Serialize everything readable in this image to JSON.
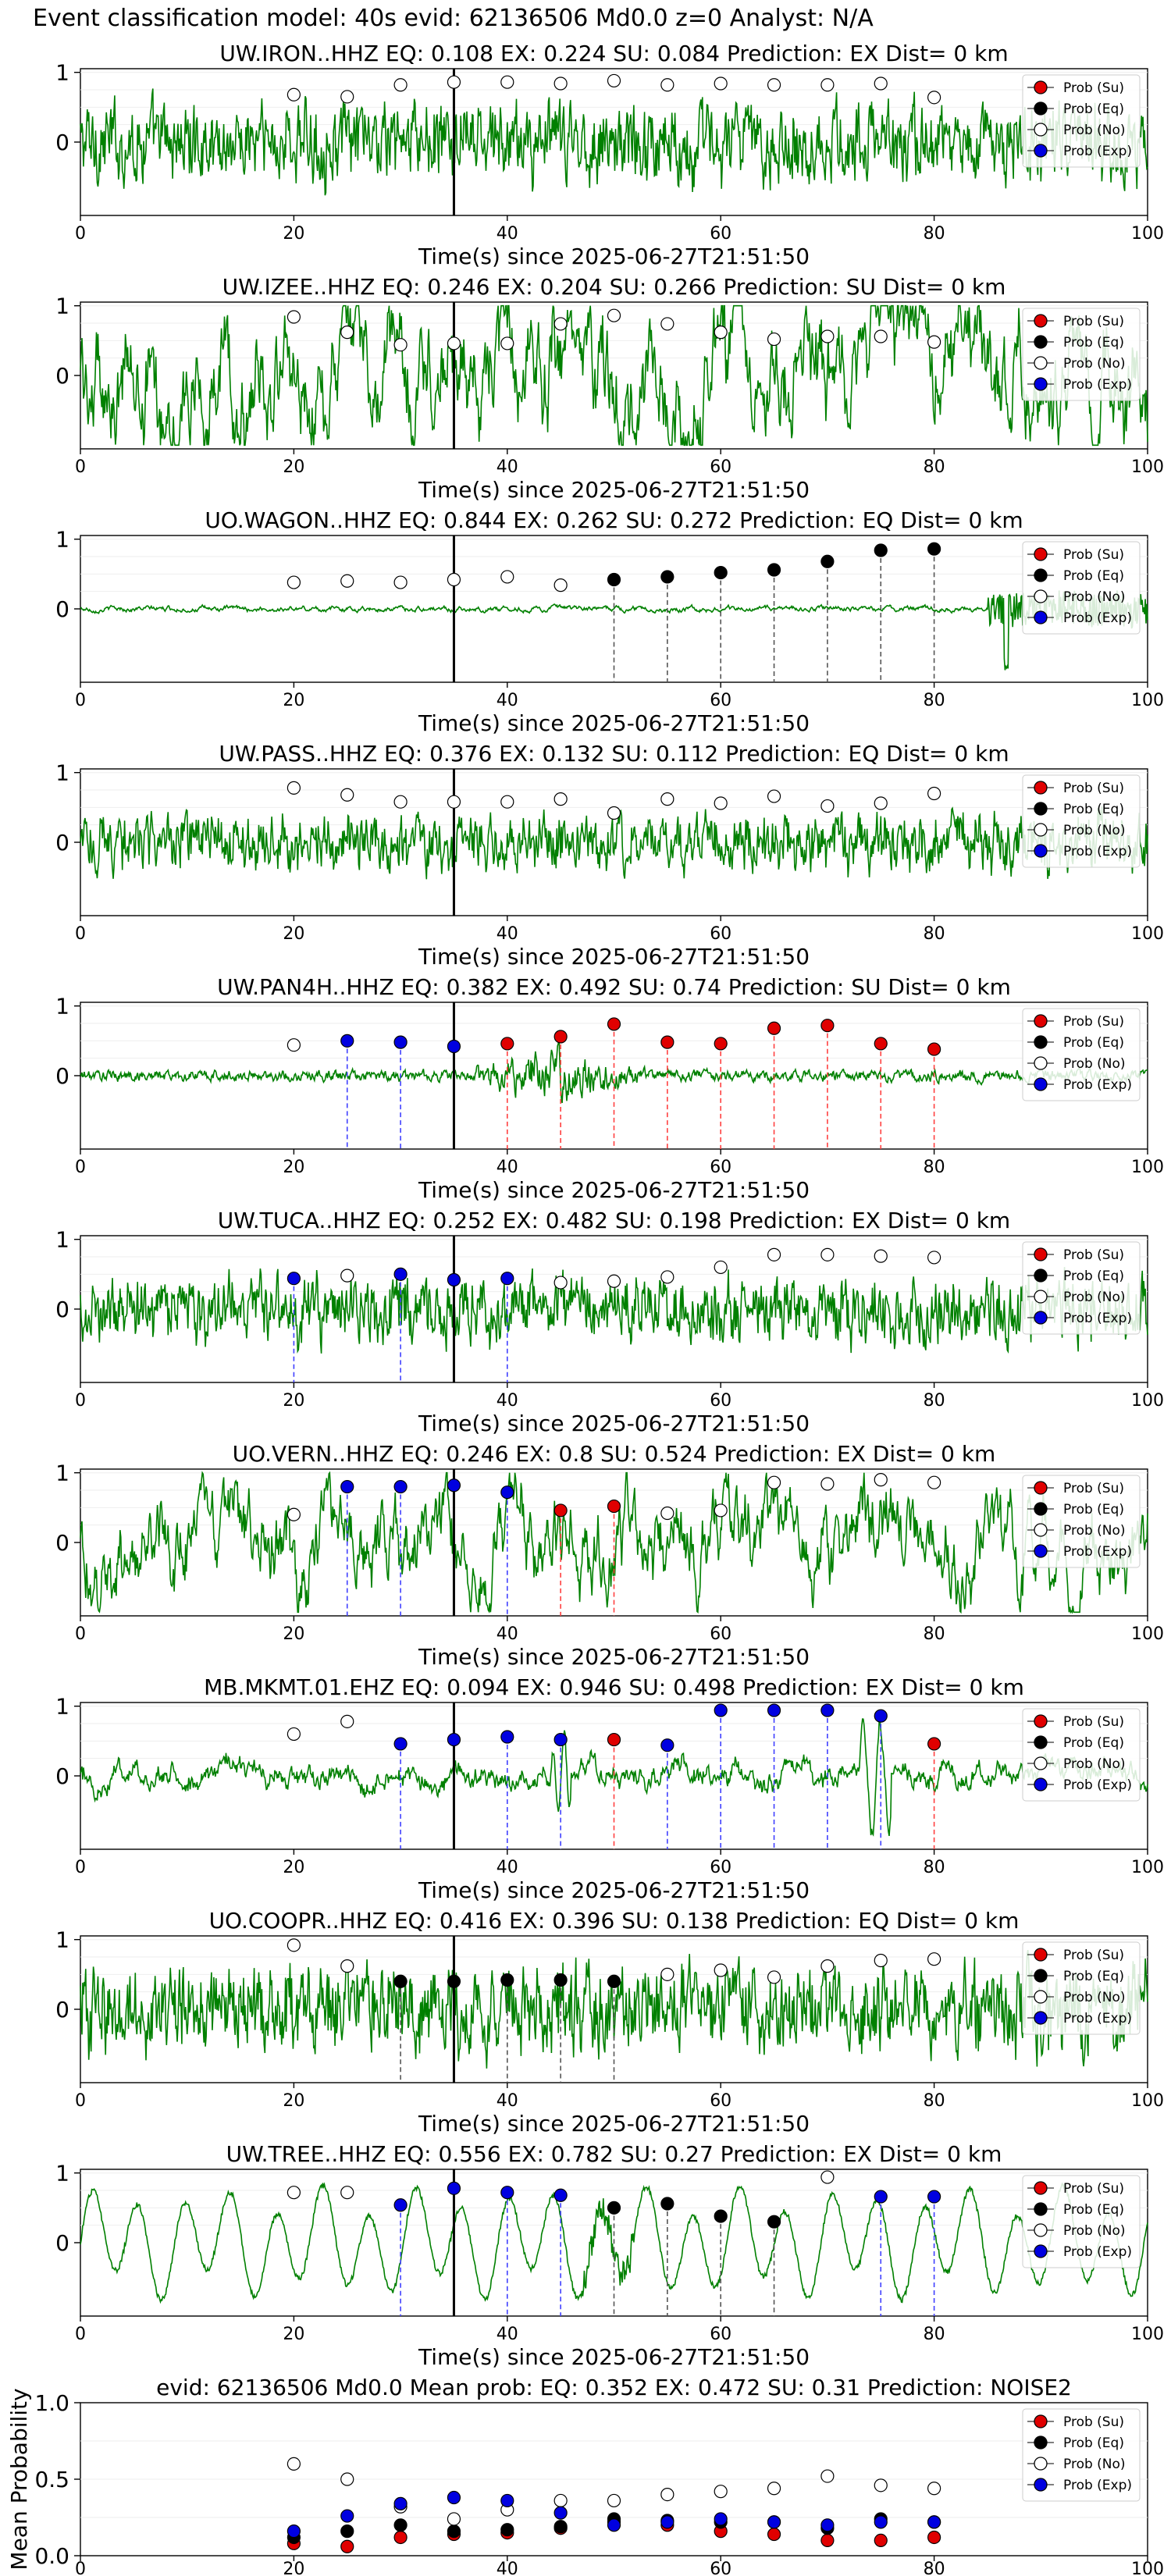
{
  "figure": {
    "suptitle": "Event classification model: 40s evid: 62136506 Md0.0 z=0 Analyst: N/A"
  },
  "legend_labels": [
    "Prob (Su)",
    "Prob (Eq)",
    "Prob (No)",
    "Prob (Exp)"
  ],
  "colors": {
    "su": "#e00000",
    "eq": "#000000",
    "no": "#ffffff",
    "exp": "#0000e0",
    "trace": "#008000",
    "su_line": "#ff4040",
    "exp_line": "#4040ff",
    "eq_line": "#555555"
  },
  "chart_data": [
    {
      "type": "line+scatter",
      "station": "UW.IRON..HHZ",
      "title": "UW.IRON..HHZ   EQ: 0.108  EX: 0.224  SU: 0.084   Prediction: EX    Dist= 0 km",
      "xlabel": "Time(s) since 2025-06-27T21:51:50",
      "xlim": [
        0,
        100
      ],
      "xticks": [
        0,
        20,
        40,
        60,
        80,
        100
      ],
      "yticks": [
        0,
        1
      ],
      "pick_time": 35,
      "trace_style": "noisy",
      "trace_amp": 0.55,
      "points": [
        {
          "t": 20,
          "cls": "no",
          "p": 0.68
        },
        {
          "t": 25,
          "cls": "no",
          "p": 0.65
        },
        {
          "t": 30,
          "cls": "no",
          "p": 0.82
        },
        {
          "t": 35,
          "cls": "no",
          "p": 0.86
        },
        {
          "t": 40,
          "cls": "no",
          "p": 0.86
        },
        {
          "t": 45,
          "cls": "no",
          "p": 0.84
        },
        {
          "t": 50,
          "cls": "no",
          "p": 0.88
        },
        {
          "t": 55,
          "cls": "no",
          "p": 0.82
        },
        {
          "t": 60,
          "cls": "no",
          "p": 0.84
        },
        {
          "t": 65,
          "cls": "no",
          "p": 0.82
        },
        {
          "t": 70,
          "cls": "no",
          "p": 0.82
        },
        {
          "t": 75,
          "cls": "no",
          "p": 0.84
        },
        {
          "t": 80,
          "cls": "no",
          "p": 0.64
        }
      ]
    },
    {
      "type": "line+scatter",
      "station": "UW.IZEE..HHZ",
      "title": "UW.IZEE..HHZ  EQ: 0.246  EX: 0.204  SU: 0.266   Prediction: SU    Dist= 0 km",
      "xlabel": "Time(s) since 2025-06-27T21:51:50",
      "xlim": [
        0,
        100
      ],
      "xticks": [
        0,
        20,
        40,
        60,
        80,
        100
      ],
      "yticks": [
        0,
        1
      ],
      "pick_time": 35,
      "trace_style": "lowfreq",
      "trace_amp": 0.8,
      "points": [
        {
          "t": 20,
          "cls": "no",
          "p": 0.84
        },
        {
          "t": 25,
          "cls": "no",
          "p": 0.62
        },
        {
          "t": 30,
          "cls": "no",
          "p": 0.44
        },
        {
          "t": 35,
          "cls": "no",
          "p": 0.46
        },
        {
          "t": 40,
          "cls": "no",
          "p": 0.46
        },
        {
          "t": 45,
          "cls": "no",
          "p": 0.74
        },
        {
          "t": 50,
          "cls": "no",
          "p": 0.86
        },
        {
          "t": 55,
          "cls": "no",
          "p": 0.74
        },
        {
          "t": 60,
          "cls": "no",
          "p": 0.62
        },
        {
          "t": 65,
          "cls": "no",
          "p": 0.52
        },
        {
          "t": 70,
          "cls": "no",
          "p": 0.56
        },
        {
          "t": 75,
          "cls": "no",
          "p": 0.56
        },
        {
          "t": 80,
          "cls": "no",
          "p": 0.48
        }
      ]
    },
    {
      "type": "line+scatter",
      "station": "UO.WAGON..HHZ",
      "title": "UO.WAGON..HHZ   EQ: 0.844  EX: 0.262  SU: 0.272   Prediction: EQ    Dist= 0 km",
      "xlabel": "Time(s) since 2025-06-27T21:51:50",
      "xlim": [
        0,
        100
      ],
      "xticks": [
        0,
        20,
        40,
        60,
        80,
        100
      ],
      "yticks": [
        0,
        1
      ],
      "pick_time": 35,
      "trace_style": "quiet",
      "trace_amp": 0.06,
      "points": [
        {
          "t": 20,
          "cls": "no",
          "p": 0.38
        },
        {
          "t": 25,
          "cls": "no",
          "p": 0.4
        },
        {
          "t": 30,
          "cls": "no",
          "p": 0.38
        },
        {
          "t": 35,
          "cls": "no",
          "p": 0.42
        },
        {
          "t": 40,
          "cls": "no",
          "p": 0.46
        },
        {
          "t": 45,
          "cls": "no",
          "p": 0.34
        },
        {
          "t": 50,
          "cls": "eq",
          "p": 0.42
        },
        {
          "t": 55,
          "cls": "eq",
          "p": 0.46
        },
        {
          "t": 60,
          "cls": "eq",
          "p": 0.52
        },
        {
          "t": 65,
          "cls": "eq",
          "p": 0.56
        },
        {
          "t": 70,
          "cls": "eq",
          "p": 0.68
        },
        {
          "t": 75,
          "cls": "eq",
          "p": 0.84
        },
        {
          "t": 80,
          "cls": "eq",
          "p": 0.86
        }
      ]
    },
    {
      "type": "line+scatter",
      "station": "UW.PASS..HHZ",
      "title": "UW.PASS..HHZ   EQ: 0.376  EX: 0.132  SU: 0.112   Prediction: EQ    Dist= 0 km",
      "xlabel": "Time(s) since 2025-06-27T21:51:50",
      "xlim": [
        0,
        100
      ],
      "xticks": [
        0,
        20,
        40,
        60,
        80,
        100
      ],
      "yticks": [
        0,
        1
      ],
      "pick_time": 35,
      "trace_style": "noisy",
      "trace_amp": 0.4,
      "points": [
        {
          "t": 20,
          "cls": "no",
          "p": 0.78
        },
        {
          "t": 25,
          "cls": "no",
          "p": 0.68
        },
        {
          "t": 30,
          "cls": "no",
          "p": 0.58
        },
        {
          "t": 35,
          "cls": "no",
          "p": 0.58
        },
        {
          "t": 40,
          "cls": "no",
          "p": 0.58
        },
        {
          "t": 45,
          "cls": "no",
          "p": 0.62
        },
        {
          "t": 50,
          "cls": "no",
          "p": 0.42
        },
        {
          "t": 55,
          "cls": "no",
          "p": 0.62
        },
        {
          "t": 60,
          "cls": "no",
          "p": 0.56
        },
        {
          "t": 65,
          "cls": "no",
          "p": 0.66
        },
        {
          "t": 70,
          "cls": "no",
          "p": 0.52
        },
        {
          "t": 75,
          "cls": "no",
          "p": 0.56
        },
        {
          "t": 80,
          "cls": "no",
          "p": 0.7
        }
      ]
    },
    {
      "type": "line+scatter",
      "station": "UW.PAN4H..HHZ",
      "title": "UW.PAN4H..HHZ   EQ: 0.382  EX: 0.492  SU: 0.74   Prediction: SU    Dist= 0 km",
      "xlabel": "Time(s) since 2025-06-27T21:51:50",
      "xlim": [
        0,
        100
      ],
      "xticks": [
        0,
        20,
        40,
        60,
        80,
        100
      ],
      "yticks": [
        0,
        1
      ],
      "pick_time": 35,
      "trace_style": "burst",
      "trace_amp": 0.15,
      "points": [
        {
          "t": 20,
          "cls": "no",
          "p": 0.44
        },
        {
          "t": 25,
          "cls": "exp",
          "p": 0.5
        },
        {
          "t": 30,
          "cls": "exp",
          "p": 0.48
        },
        {
          "t": 35,
          "cls": "exp",
          "p": 0.42
        },
        {
          "t": 40,
          "cls": "su",
          "p": 0.46
        },
        {
          "t": 45,
          "cls": "su",
          "p": 0.56
        },
        {
          "t": 50,
          "cls": "su",
          "p": 0.74
        },
        {
          "t": 55,
          "cls": "su",
          "p": 0.48
        },
        {
          "t": 60,
          "cls": "su",
          "p": 0.46
        },
        {
          "t": 65,
          "cls": "su",
          "p": 0.68
        },
        {
          "t": 70,
          "cls": "su",
          "p": 0.72
        },
        {
          "t": 75,
          "cls": "su",
          "p": 0.46
        },
        {
          "t": 80,
          "cls": "su",
          "p": 0.38
        }
      ]
    },
    {
      "type": "line+scatter",
      "station": "UW.TUCA..HHZ",
      "title": "UW.TUCA..HHZ   EQ: 0.252  EX: 0.482  SU: 0.198   Prediction: EX    Dist= 0 km",
      "xlabel": "Time(s) since 2025-06-27T21:51:50",
      "xlim": [
        0,
        100
      ],
      "xticks": [
        0,
        20,
        40,
        60,
        80,
        100
      ],
      "yticks": [
        0,
        1
      ],
      "pick_time": 35,
      "trace_style": "noisy",
      "trace_amp": 0.45,
      "points": [
        {
          "t": 20,
          "cls": "exp",
          "p": 0.44
        },
        {
          "t": 25,
          "cls": "no",
          "p": 0.48
        },
        {
          "t": 30,
          "cls": "exp",
          "p": 0.5
        },
        {
          "t": 35,
          "cls": "exp",
          "p": 0.42
        },
        {
          "t": 40,
          "cls": "exp",
          "p": 0.44
        },
        {
          "t": 45,
          "cls": "no",
          "p": 0.38
        },
        {
          "t": 50,
          "cls": "no",
          "p": 0.4
        },
        {
          "t": 55,
          "cls": "no",
          "p": 0.46
        },
        {
          "t": 60,
          "cls": "no",
          "p": 0.6
        },
        {
          "t": 65,
          "cls": "no",
          "p": 0.78
        },
        {
          "t": 70,
          "cls": "no",
          "p": 0.78
        },
        {
          "t": 75,
          "cls": "no",
          "p": 0.76
        },
        {
          "t": 80,
          "cls": "no",
          "p": 0.74
        }
      ]
    },
    {
      "type": "line+scatter",
      "station": "UO.VERN..HHZ",
      "title": "UO.VERN..HHZ   EQ: 0.246  EX: 0.8  SU: 0.524   Prediction: EX    Dist= 0 km",
      "xlabel": "Time(s) since 2025-06-27T21:51:50",
      "xlim": [
        0,
        100
      ],
      "xticks": [
        0,
        20,
        40,
        60,
        80,
        100
      ],
      "yticks": [
        0,
        1
      ],
      "pick_time": 35,
      "trace_style": "lowfreq",
      "trace_amp": 0.6,
      "points": [
        {
          "t": 20,
          "cls": "no",
          "p": 0.4
        },
        {
          "t": 25,
          "cls": "exp",
          "p": 0.8
        },
        {
          "t": 30,
          "cls": "exp",
          "p": 0.8
        },
        {
          "t": 35,
          "cls": "exp",
          "p": 0.82
        },
        {
          "t": 40,
          "cls": "exp",
          "p": 0.72
        },
        {
          "t": 45,
          "cls": "su",
          "p": 0.46
        },
        {
          "t": 50,
          "cls": "su",
          "p": 0.52
        },
        {
          "t": 55,
          "cls": "no",
          "p": 0.42
        },
        {
          "t": 60,
          "cls": "no",
          "p": 0.46
        },
        {
          "t": 65,
          "cls": "no",
          "p": 0.86
        },
        {
          "t": 70,
          "cls": "no",
          "p": 0.84
        },
        {
          "t": 75,
          "cls": "no",
          "p": 0.9
        },
        {
          "t": 80,
          "cls": "no",
          "p": 0.86
        }
      ]
    },
    {
      "type": "line+scatter",
      "station": "MB.MKMT.01.EHZ",
      "title": "MB.MKMT.01.EHZ   EQ: 0.094  EX: 0.946  SU: 0.498   Prediction: EX    Dist= 0 km",
      "xlabel": "Time(s) since 2025-06-27T21:51:50",
      "xlim": [
        0,
        100
      ],
      "xticks": [
        0,
        20,
        40,
        60,
        80,
        100
      ],
      "yticks": [
        0,
        1
      ],
      "pick_time": 35,
      "trace_style": "spiky",
      "trace_amp": 0.3,
      "points": [
        {
          "t": 20,
          "cls": "no",
          "p": 0.6
        },
        {
          "t": 25,
          "cls": "no",
          "p": 0.78
        },
        {
          "t": 30,
          "cls": "exp",
          "p": 0.46
        },
        {
          "t": 35,
          "cls": "exp",
          "p": 0.52
        },
        {
          "t": 40,
          "cls": "exp",
          "p": 0.56
        },
        {
          "t": 45,
          "cls": "exp",
          "p": 0.52
        },
        {
          "t": 50,
          "cls": "su",
          "p": 0.52
        },
        {
          "t": 55,
          "cls": "exp",
          "p": 0.44
        },
        {
          "t": 60,
          "cls": "exp",
          "p": 0.94
        },
        {
          "t": 65,
          "cls": "exp",
          "p": 0.94
        },
        {
          "t": 70,
          "cls": "exp",
          "p": 0.94
        },
        {
          "t": 75,
          "cls": "exp",
          "p": 0.86
        },
        {
          "t": 80,
          "cls": "su",
          "p": 0.46
        }
      ]
    },
    {
      "type": "line+scatter",
      "station": "UO.COOPR..HHZ",
      "title": "UO.COOPR..HHZ   EQ: 0.416  EX: 0.396  SU: 0.138   Prediction: EQ    Dist= 0 km",
      "xlabel": "Time(s) since 2025-06-27T21:51:50",
      "xlim": [
        0,
        100
      ],
      "xticks": [
        0,
        20,
        40,
        60,
        80,
        100
      ],
      "yticks": [
        0,
        1
      ],
      "pick_time": 35,
      "trace_style": "noisy",
      "trace_amp": 0.6,
      "points": [
        {
          "t": 20,
          "cls": "no",
          "p": 0.92
        },
        {
          "t": 25,
          "cls": "no",
          "p": 0.62
        },
        {
          "t": 30,
          "cls": "eq",
          "p": 0.4
        },
        {
          "t": 35,
          "cls": "eq",
          "p": 0.4
        },
        {
          "t": 40,
          "cls": "eq",
          "p": 0.42
        },
        {
          "t": 45,
          "cls": "eq",
          "p": 0.42
        },
        {
          "t": 50,
          "cls": "eq",
          "p": 0.4
        },
        {
          "t": 55,
          "cls": "no",
          "p": 0.5
        },
        {
          "t": 60,
          "cls": "no",
          "p": 0.56
        },
        {
          "t": 65,
          "cls": "no",
          "p": 0.46
        },
        {
          "t": 70,
          "cls": "no",
          "p": 0.62
        },
        {
          "t": 75,
          "cls": "no",
          "p": 0.7
        },
        {
          "t": 80,
          "cls": "no",
          "p": 0.72
        }
      ]
    },
    {
      "type": "line+scatter",
      "station": "UW.TREE..HHZ",
      "title": "UW.TREE..HHZ   EQ: 0.556  EX: 0.782  SU: 0.27   Prediction: EX    Dist= 0 km",
      "xlabel": "Time(s) since 2025-06-27T21:51:50",
      "xlim": [
        0,
        100
      ],
      "xticks": [
        0,
        20,
        40,
        60,
        80,
        100
      ],
      "yticks": [
        0,
        1
      ],
      "pick_time": 35,
      "trace_style": "wave",
      "trace_amp": 0.75,
      "points": [
        {
          "t": 20,
          "cls": "no",
          "p": 0.72
        },
        {
          "t": 25,
          "cls": "no",
          "p": 0.72
        },
        {
          "t": 30,
          "cls": "exp",
          "p": 0.54
        },
        {
          "t": 35,
          "cls": "exp",
          "p": 0.78
        },
        {
          "t": 40,
          "cls": "exp",
          "p": 0.72
        },
        {
          "t": 45,
          "cls": "exp",
          "p": 0.68
        },
        {
          "t": 50,
          "cls": "eq",
          "p": 0.5
        },
        {
          "t": 55,
          "cls": "eq",
          "p": 0.56
        },
        {
          "t": 60,
          "cls": "eq",
          "p": 0.38
        },
        {
          "t": 65,
          "cls": "eq",
          "p": 0.3
        },
        {
          "t": 70,
          "cls": "no",
          "p": 0.94
        },
        {
          "t": 75,
          "cls": "exp",
          "p": 0.66
        },
        {
          "t": 80,
          "cls": "exp",
          "p": 0.66
        }
      ]
    },
    {
      "type": "scatter",
      "station": "mean",
      "title": "evid: 62136506  Md0.0   Mean prob:   EQ: 0.352  EX: 0.472  SU: 0.31   Prediction: NOISE2",
      "ylabel": "Mean Probability",
      "xlim": [
        0,
        100
      ],
      "ylim": [
        0,
        1
      ],
      "xticks": [
        0,
        20,
        40,
        60,
        80,
        100
      ],
      "yticks": [
        0.0,
        0.5,
        1.0
      ],
      "series": [
        {
          "cls": "su",
          "t": [
            20,
            25,
            30,
            35,
            40,
            45,
            50,
            55,
            60,
            65,
            70,
            75,
            80
          ],
          "p": [
            0.08,
            0.06,
            0.12,
            0.14,
            0.15,
            0.18,
            0.22,
            0.2,
            0.16,
            0.14,
            0.1,
            0.1,
            0.12
          ]
        },
        {
          "cls": "eq",
          "t": [
            20,
            25,
            30,
            35,
            40,
            45,
            50,
            55,
            60,
            65,
            70,
            75,
            80
          ],
          "p": [
            0.12,
            0.16,
            0.2,
            0.16,
            0.17,
            0.19,
            0.24,
            0.23,
            0.22,
            0.22,
            0.18,
            0.24,
            0.22
          ]
        },
        {
          "cls": "no",
          "t": [
            20,
            25,
            30,
            35,
            40,
            45,
            50,
            55,
            60,
            65,
            70,
            75,
            80
          ],
          "p": [
            0.6,
            0.5,
            0.32,
            0.24,
            0.3,
            0.36,
            0.36,
            0.4,
            0.42,
            0.44,
            0.52,
            0.46,
            0.44
          ]
        },
        {
          "cls": "exp",
          "t": [
            20,
            25,
            30,
            35,
            40,
            45,
            50,
            55,
            60,
            65,
            70,
            75,
            80
          ],
          "p": [
            0.16,
            0.26,
            0.34,
            0.38,
            0.36,
            0.28,
            0.2,
            0.22,
            0.24,
            0.22,
            0.2,
            0.22,
            0.22
          ]
        }
      ]
    }
  ]
}
